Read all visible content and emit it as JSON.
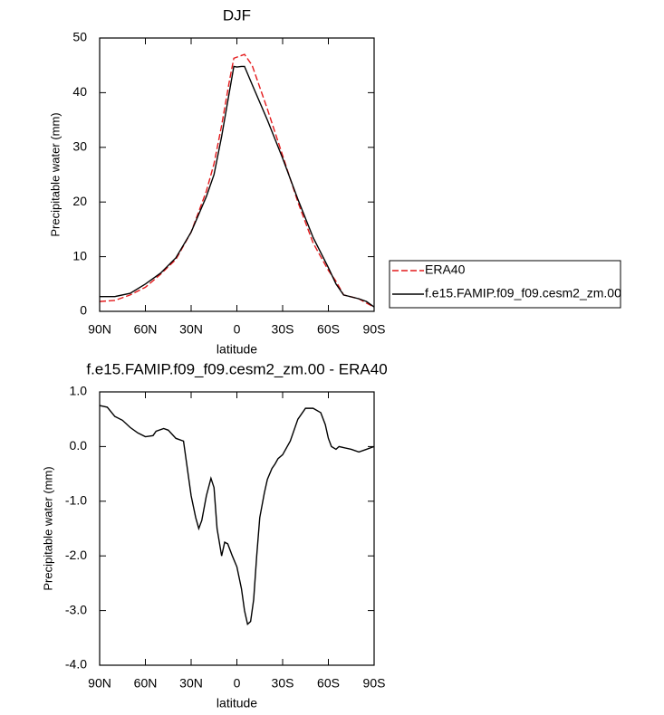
{
  "chart_data": [
    {
      "type": "line",
      "title": "DJF",
      "xlabel": "latitude",
      "ylabel": "Precipitable water (mm)",
      "x": [
        90,
        80,
        70,
        60,
        50,
        40,
        30,
        20,
        15,
        10,
        5,
        2,
        0,
        -3,
        -5,
        -10,
        -20,
        -30,
        -40,
        -50,
        -60,
        -65,
        -70,
        -80,
        -85,
        -90
      ],
      "series": [
        {
          "name": "ERA40",
          "color": "#e41a1c",
          "dashed": true,
          "values": [
            1.8,
            2,
            3,
            4.4,
            6.8,
            9.5,
            14.5,
            22,
            27,
            34,
            42,
            46.3,
            46.5,
            46.8,
            47,
            45,
            37,
            28.5,
            20,
            12.5,
            7.5,
            5.5,
            3,
            2.3,
            1.5,
            0.8
          ]
        },
        {
          "name": "f.e15.FAMIP.f09_f09.cesm2_zm.00",
          "color": "#000000",
          "dashed": false,
          "values": [
            2.7,
            2.7,
            3.3,
            5,
            7,
            9.8,
            14.5,
            21,
            25,
            32,
            40,
            44.8,
            44.7,
            44.8,
            44.8,
            41.5,
            35,
            28,
            20.5,
            13.5,
            8,
            5,
            3,
            2.3,
            1.8,
            0.8
          ]
        }
      ],
      "xlim": [
        90,
        -90
      ],
      "xticks": [
        {
          "value": 90,
          "label": "90N"
        },
        {
          "value": 60,
          "label": "60N"
        },
        {
          "value": 30,
          "label": "30N"
        },
        0,
        {
          "value": -30,
          "label": "30S"
        },
        {
          "value": -60,
          "label": "60S"
        },
        {
          "value": -90,
          "label": "90S"
        }
      ],
      "ylim": [
        0,
        50
      ],
      "yticks": [
        0,
        10,
        20,
        30,
        40,
        50
      ],
      "legend": "right"
    },
    {
      "type": "line",
      "title": "f.e15.FAMIP.f09_f09.cesm2_zm.00 - ERA40",
      "xlabel": "latitude",
      "ylabel": "Precipitable water (mm)",
      "x": [
        90,
        85,
        80,
        75,
        70,
        65,
        60,
        55,
        53,
        48,
        45,
        40,
        35,
        33,
        30,
        27,
        25,
        23,
        20,
        17,
        15,
        13,
        10,
        8,
        6,
        3,
        0,
        -3,
        -5,
        -7,
        -9,
        -11,
        -13,
        -15,
        -18,
        -20,
        -23,
        -25,
        -27,
        -30,
        -35,
        -40,
        -45,
        -50,
        -55,
        -58,
        -60,
        -62,
        -65,
        -67,
        -70,
        -75,
        -80,
        -85,
        -90
      ],
      "values": [
        0.75,
        0.72,
        0.55,
        0.48,
        0.35,
        0.25,
        0.18,
        0.2,
        0.28,
        0.33,
        0.3,
        0.15,
        0.1,
        -0.3,
        -0.9,
        -1.3,
        -1.5,
        -1.35,
        -0.9,
        -0.58,
        -0.75,
        -1.5,
        -2.0,
        -1.75,
        -1.78,
        -2.0,
        -2.2,
        -2.6,
        -3.0,
        -3.25,
        -3.2,
        -2.8,
        -2.0,
        -1.3,
        -0.85,
        -0.6,
        -0.4,
        -0.32,
        -0.22,
        -0.15,
        0.1,
        0.5,
        0.7,
        0.7,
        0.62,
        0.4,
        0.15,
        0.0,
        -0.05,
        0.0,
        -0.02,
        -0.05,
        -0.1,
        -0.05,
        0.0
      ],
      "color": "#000000",
      "xlim": [
        90,
        -90
      ],
      "xticks": [
        {
          "value": 90,
          "label": "90N"
        },
        {
          "value": 60,
          "label": "60N"
        },
        {
          "value": 30,
          "label": "30N"
        },
        0,
        {
          "value": -30,
          "label": "30S"
        },
        {
          "value": -60,
          "label": "60S"
        },
        {
          "value": -90,
          "label": "90S"
        }
      ],
      "ylim": [
        -4,
        1
      ],
      "yticks": [
        {
          "value": -4,
          "label": "-4.0"
        },
        {
          "value": -3,
          "label": "-3.0"
        },
        {
          "value": -2,
          "label": "-2.0"
        },
        {
          "value": -1,
          "label": "-1.0"
        },
        {
          "value": 0,
          "label": "0.0"
        },
        {
          "value": 1,
          "label": "1.0"
        }
      ]
    }
  ]
}
